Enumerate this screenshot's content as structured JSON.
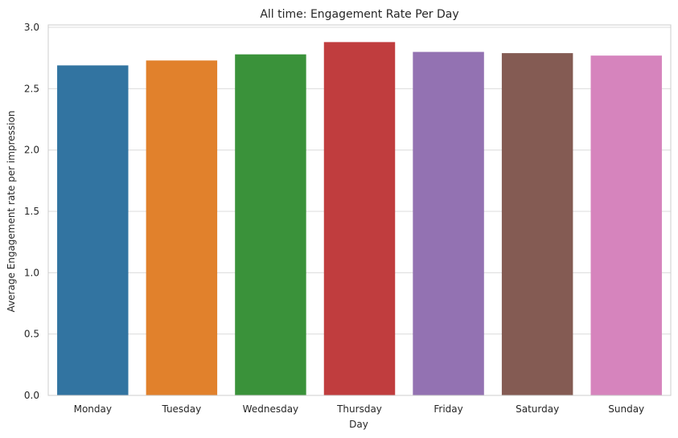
{
  "chart_data": {
    "type": "bar",
    "title": "All time: Engagement Rate Per Day",
    "xlabel": "Day",
    "ylabel": "Average Engagement rate per impression",
    "categories": [
      "Monday",
      "Tuesday",
      "Wednesday",
      "Thursday",
      "Friday",
      "Saturday",
      "Sunday"
    ],
    "values": [
      2.69,
      2.73,
      2.78,
      2.88,
      2.8,
      2.79,
      2.77
    ],
    "colors": [
      "#3274a1",
      "#e1812c",
      "#3a923a",
      "#c03d3e",
      "#9372b2",
      "#845b53",
      "#d684bd"
    ],
    "ylim": [
      0,
      3.02
    ],
    "yticks": [
      {
        "value": 0.0,
        "label": "0.0"
      },
      {
        "value": 0.5,
        "label": "0.5"
      },
      {
        "value": 1.0,
        "label": "1.0"
      },
      {
        "value": 1.5,
        "label": "1.5"
      },
      {
        "value": 2.0,
        "label": "2.0"
      },
      {
        "value": 2.5,
        "label": "2.5"
      },
      {
        "value": 3.0,
        "label": "3.0"
      }
    ],
    "grid": true,
    "grid_color": "#dcdcdc",
    "frame_color": "#cccccc"
  }
}
